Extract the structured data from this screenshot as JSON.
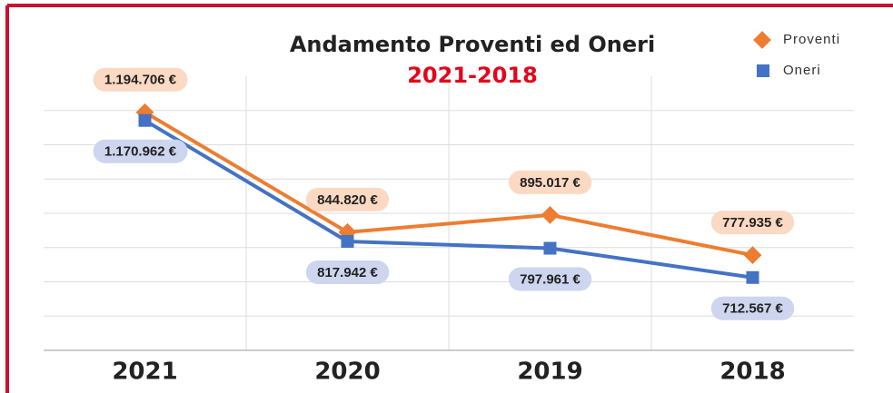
{
  "chart_data": {
    "type": "line",
    "title": "Andamento Proventi ed Oneri",
    "subtitle": "2021-2018",
    "categories": [
      "2021",
      "2020",
      "2019",
      "2018"
    ],
    "series": [
      {
        "name": "Proventi",
        "color": "#ed7d31",
        "values": [
          1194706,
          844820,
          895017,
          777935
        ],
        "value_labels": [
          "1.194.706 €",
          "844.820 €",
          "895.017 €",
          "777.935 €"
        ]
      },
      {
        "name": "Oneri",
        "color": "#4472c4",
        "values": [
          1170962,
          817942,
          797961,
          712567
        ],
        "value_labels": [
          "1.170.962 €",
          "817.942 €",
          "797.961 €",
          "712.567 €"
        ]
      }
    ],
    "ylim": [
      500000,
      1300000
    ],
    "yticks": [
      500000,
      600000,
      700000,
      800000,
      900000,
      1000000,
      1100000,
      1200000
    ],
    "grid": true,
    "legend": "top-right"
  }
}
